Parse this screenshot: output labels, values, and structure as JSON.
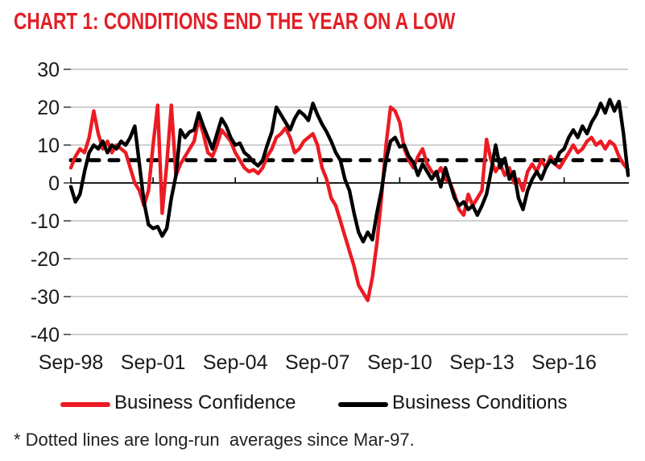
{
  "title": "CHART 1: CONDITIONS END THE YEAR ON A LOW",
  "footnote": "* Dotted lines are long-run  averages since Mar-97.",
  "colors": {
    "title_red": "#e31f26",
    "confidence_red": "#ec1b23",
    "conditions_black": "#000000",
    "gridline_gray": "#b3b3b3",
    "axis_black": "#000000",
    "label_text": "#1a1a1a"
  },
  "chart_data": {
    "type": "line",
    "title": "CHART 1: CONDITIONS END THE YEAR ON A LOW",
    "ylim": [
      -40,
      30
    ],
    "y_ticks": [
      30,
      20,
      10,
      0,
      -10,
      -20,
      -30,
      -40
    ],
    "x_tick_labels": [
      "Sep-98",
      "Sep-01",
      "Sep-04",
      "Sep-07",
      "Sep-10",
      "Sep-13",
      "Sep-16"
    ],
    "x_tick_months": [
      0,
      36,
      72,
      108,
      144,
      180,
      216
    ],
    "x_total_months": 244,
    "sample_step_months": 2,
    "grid": "horizontal",
    "legend_position": "bottom",
    "long_run_average_line": {
      "value": 6,
      "style": "dashed",
      "color": "#000000"
    },
    "series": [
      {
        "name": "Business Confidence",
        "color": "#ec1b23",
        "values": [
          4,
          7,
          9,
          8,
          12,
          19,
          13,
          9,
          11,
          8,
          10,
          9,
          8,
          4,
          0,
          -2,
          -6,
          -2,
          10,
          20.5,
          -8,
          5,
          20.5,
          2,
          5,
          7,
          9,
          11,
          17,
          13,
          8,
          7,
          10,
          14,
          12.5,
          11,
          8,
          6,
          4,
          3,
          3.5,
          2.5,
          4,
          7,
          9,
          12,
          13,
          14.5,
          12,
          8,
          9,
          11,
          12,
          13,
          10,
          4,
          1,
          -4,
          -6,
          -10,
          -14,
          -18,
          -22,
          -27,
          -29,
          -31,
          -25,
          -16,
          -4,
          10,
          20,
          19,
          16,
          9,
          6,
          4,
          7,
          9,
          5,
          3,
          2,
          4,
          1,
          0,
          -3,
          -7,
          -8.5,
          -3,
          -6,
          -4,
          -2,
          11.5,
          6,
          3,
          5,
          2,
          4,
          0,
          1,
          -2,
          3,
          5,
          3,
          6,
          4,
          7,
          5,
          4,
          6,
          8,
          10,
          8,
          9,
          11,
          12,
          10,
          11,
          9,
          11,
          10,
          7,
          5,
          3.5
        ]
      },
      {
        "name": "Business Conditions",
        "color": "#000000",
        "values": [
          -1,
          -5,
          -3,
          3,
          8,
          10,
          9,
          11,
          8,
          10,
          9,
          11,
          10,
          12,
          15,
          5,
          -5,
          -11,
          -12,
          -11.5,
          -14,
          -12,
          -4,
          2,
          14,
          12,
          13.5,
          14,
          18.5,
          15,
          12,
          9,
          13,
          17,
          15,
          12,
          10,
          10.5,
          8,
          7,
          5.5,
          4.5,
          6,
          10,
          13.5,
          20,
          18,
          16,
          14,
          17,
          19,
          18,
          16.5,
          21,
          18,
          15.5,
          13.5,
          11,
          8,
          6,
          1,
          -2,
          -8,
          -13,
          -15.5,
          -13,
          -15,
          -8,
          -2,
          6,
          11,
          12,
          9.5,
          10,
          7,
          5.5,
          2,
          5,
          3,
          1,
          3,
          -1,
          4,
          0,
          -4,
          -6,
          -5,
          -7,
          -6,
          -8.5,
          -6,
          -3,
          3,
          10,
          4,
          6.5,
          1,
          3,
          -4,
          -7,
          -2,
          1,
          3,
          1,
          4,
          6,
          5,
          8,
          9,
          12,
          14,
          12,
          15,
          13,
          16,
          18,
          21,
          18.5,
          22,
          19,
          21.5,
          13,
          2
        ]
      }
    ]
  }
}
